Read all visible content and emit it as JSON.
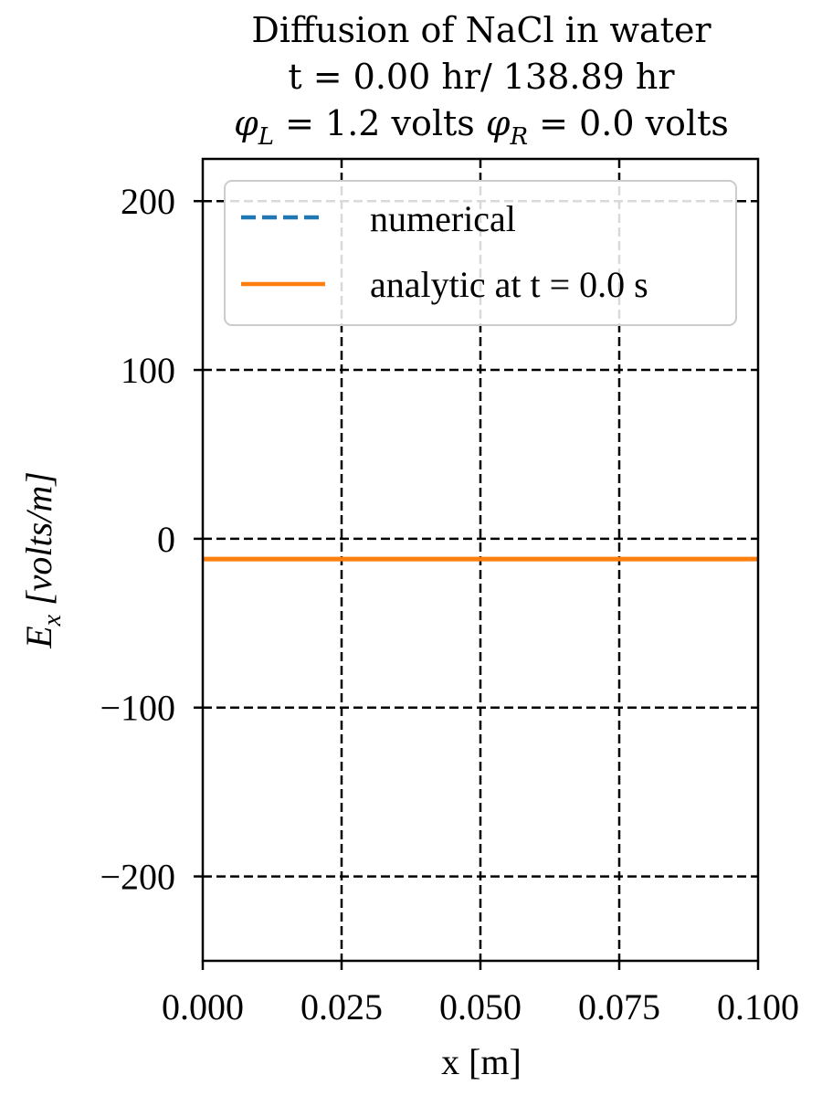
{
  "chart_data": {
    "type": "line",
    "title": "Diffusion of NaCl in water",
    "subtitle": "t = 0.00 hr/ 138.89 hr",
    "subtitle2": {
      "phiL_symbol": "φ",
      "phiL_sub": "L",
      "phiL_rest": " = 1.2 volts ",
      "phiR_symbol": "φ",
      "phiR_sub": "R",
      "phiR_rest": " = 0.0 volts"
    },
    "xlabel": "x [m]",
    "ylabel": {
      "symbol": "E",
      "sub": "x",
      "rest": " [volts/m]"
    },
    "xlim": [
      0.0,
      0.1
    ],
    "ylim": [
      -250,
      225
    ],
    "xticks": [
      0.0,
      0.025,
      0.05,
      0.075,
      0.1
    ],
    "xtick_labels": [
      "0.000",
      "0.025",
      "0.050",
      "0.075",
      "0.100"
    ],
    "yticks": [
      200,
      100,
      0,
      -100,
      -200
    ],
    "ytick_labels": [
      "200",
      "100",
      "0",
      "−100",
      "−200"
    ],
    "grid": true,
    "legend_position": "top",
    "series": [
      {
        "name": "numerical",
        "style": "dashed",
        "color": "#1f77b4",
        "x": [
          0.0,
          0.1
        ],
        "y": [
          -12,
          -12
        ]
      },
      {
        "name": "analytic at t = 0.0 s",
        "style": "solid",
        "color": "#ff7f0e",
        "x": [
          0.0,
          0.1
        ],
        "y": [
          -12,
          -12
        ]
      }
    ]
  }
}
